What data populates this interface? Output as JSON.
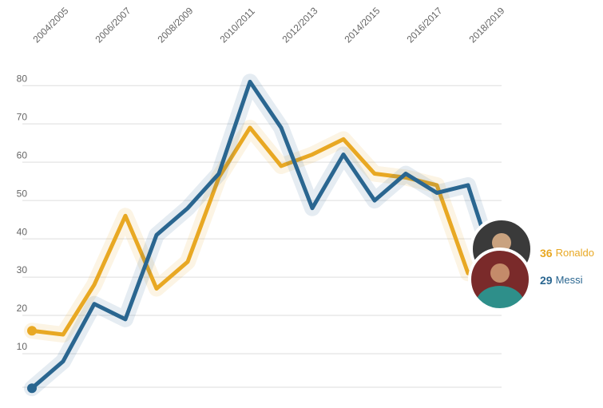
{
  "chart_data": {
    "type": "line",
    "categories": [
      "2004/2005",
      null,
      "2006/2007",
      null,
      "2008/2009",
      null,
      "2010/2011",
      null,
      "2012/2013",
      null,
      "2014/2015",
      null,
      "2016/2017",
      null,
      "2018/2019",
      null
    ],
    "series": [
      {
        "name": "Ronaldo",
        "color": "#e8a823",
        "values": [
          16,
          15,
          28,
          46,
          27,
          34,
          56,
          69,
          59,
          62,
          66,
          57,
          56,
          54,
          31,
          36
        ]
      },
      {
        "name": "Messi",
        "color": "#2a6690",
        "values": [
          1,
          8,
          23,
          19,
          41,
          48,
          57,
          81,
          69,
          48,
          62,
          50,
          57,
          52,
          54,
          29
        ]
      }
    ],
    "ylim": [
      0,
      84
    ],
    "yticks": [
      10,
      20,
      30,
      40,
      50,
      60,
      70,
      80
    ],
    "grid": true
  }
}
